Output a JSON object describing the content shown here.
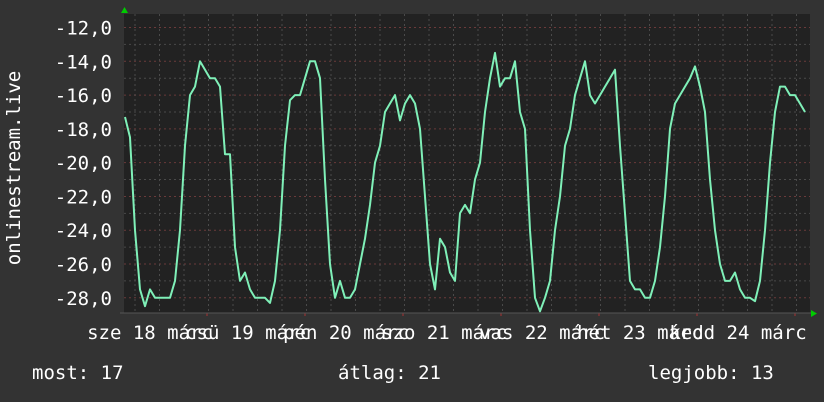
{
  "chart_data": {
    "type": "line",
    "ylabel": "onlinestream.live",
    "ylim": [
      -28.9,
      -11.2
    ],
    "y_ticks": [
      -12,
      -14,
      -16,
      -18,
      -20,
      -22,
      -24,
      -26,
      -28
    ],
    "y_tick_labels": [
      "-12,0",
      "-14,0",
      "-16,0",
      "-18,0",
      "-20,0",
      "-22,0",
      "-24,0",
      "-26,0",
      "-28,0"
    ],
    "x_tick_labels": [
      "sze 18 márc",
      "csü 19 márc",
      "pén 20 márc",
      "szo 21 márc",
      "vas 22 márc",
      "hét 23 márc",
      "kedd 24 márc"
    ],
    "grid": true,
    "line_color": "#7ff0b8",
    "values": [
      -17.3,
      -18.5,
      -24,
      -27.5,
      -28.5,
      -27.5,
      -28,
      -28,
      -28,
      -28,
      -27,
      -24,
      -19,
      -16,
      -15.5,
      -14,
      -14.5,
      -15,
      -15,
      -15.5,
      -19.5,
      -19.5,
      -25,
      -27,
      -26.5,
      -27.5,
      -28,
      -28,
      -28,
      -28.3,
      -27,
      -24,
      -19,
      -16.3,
      -16,
      -16,
      -15,
      -14,
      -14,
      -15,
      -21,
      -26,
      -28,
      -27,
      -28,
      -28,
      -27.5,
      -26,
      -24.5,
      -22.5,
      -20,
      -19,
      -17,
      -16.5,
      -16,
      -17.5,
      -16.5,
      -16,
      -16.5,
      -18,
      -22,
      -26,
      -27.5,
      -24.5,
      -25,
      -26.5,
      -27,
      -23,
      -22.5,
      -23,
      -21,
      -20,
      -17,
      -15,
      -13.5,
      -15.5,
      -15,
      -15,
      -14,
      -17,
      -18,
      -24,
      -28,
      -28.8,
      -28,
      -27,
      -24,
      -22,
      -19,
      -18,
      -16,
      -15,
      -14,
      -16,
      -16.5,
      -16,
      -15.5,
      -15,
      -14.5,
      -19,
      -23,
      -27,
      -27.5,
      -27.5,
      -28,
      -28,
      -27,
      -25,
      -22,
      -18,
      -16.5,
      -16,
      -15.5,
      -15,
      -14.3,
      -15.5,
      -17,
      -21,
      -24,
      -26,
      -27,
      -27,
      -26.5,
      -27.5,
      -28,
      -28,
      -28.2,
      -27,
      -24,
      -20,
      -17,
      -15.5,
      -15.5,
      -16,
      -16,
      -16.5,
      -17
    ]
  },
  "footer": {
    "current": "most: 17",
    "average": "átlag: 21",
    "best": "legjobb: 13"
  }
}
